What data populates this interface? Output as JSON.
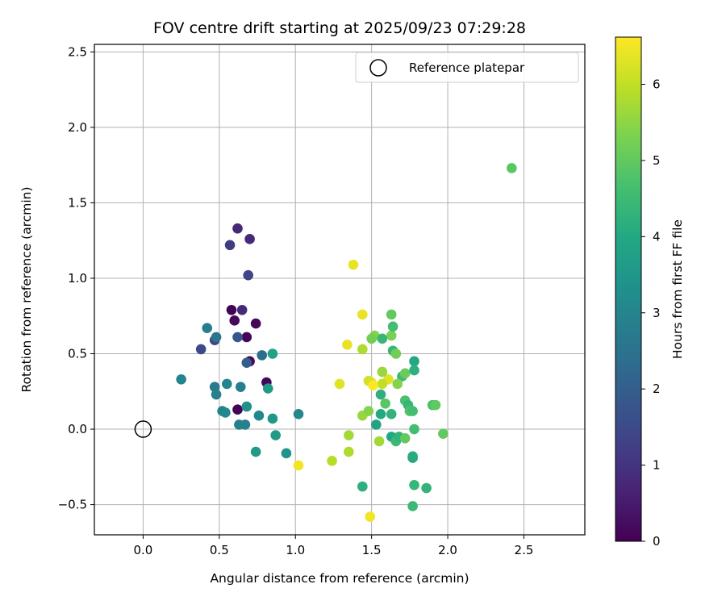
{
  "chart_data": {
    "type": "scatter",
    "title": "FOV centre drift starting at 2025/09/23 07:29:28",
    "xlabel": "Angular distance from reference (arcmin)",
    "ylabel": "Rotation from reference (arcmin)",
    "xlim": [
      -0.32,
      2.9
    ],
    "ylim": [
      -0.7,
      2.55
    ],
    "xticks": [
      0.0,
      0.5,
      1.0,
      1.5,
      2.0,
      2.5
    ],
    "xtick_labels": [
      "0.0",
      "0.5",
      "1.0",
      "1.5",
      "2.0",
      "2.5"
    ],
    "yticks": [
      -0.5,
      0.0,
      0.5,
      1.0,
      1.5,
      2.0,
      2.5
    ],
    "ytick_labels": [
      "−0.5",
      "0.0",
      "0.5",
      "1.0",
      "1.5",
      "2.0",
      "2.5"
    ],
    "grid": true,
    "legend": {
      "position": "top-right",
      "entries": [
        "Reference platepar"
      ]
    },
    "reference_point": {
      "x": 0.0,
      "y": 0.0,
      "label": "Reference platepar"
    },
    "colorbar": {
      "label": "Hours from first FF file",
      "colormap": "viridis",
      "range": [
        0,
        6.62
      ],
      "ticks": [
        0,
        1,
        2,
        3,
        4,
        5,
        6
      ],
      "tick_labels": [
        "0",
        "1",
        "2",
        "3",
        "4",
        "5",
        "6"
      ]
    },
    "points": [
      [
        0.58,
        0.79,
        0.05
      ],
      [
        0.6,
        0.72,
        0.15
      ],
      [
        0.74,
        0.7,
        0.1
      ],
      [
        0.68,
        0.61,
        0.1
      ],
      [
        0.7,
        0.45,
        0.1
      ],
      [
        0.81,
        0.31,
        0.12
      ],
      [
        0.62,
        0.13,
        0.08
      ],
      [
        0.62,
        1.33,
        0.8
      ],
      [
        0.7,
        1.26,
        0.8
      ],
      [
        0.57,
        1.22,
        1.2
      ],
      [
        0.69,
        1.02,
        1.4
      ],
      [
        0.65,
        0.79,
        0.8
      ],
      [
        0.47,
        0.59,
        1.4
      ],
      [
        0.38,
        0.53,
        1.5
      ],
      [
        0.62,
        0.61,
        1.8
      ],
      [
        0.68,
        0.44,
        2.0
      ],
      [
        0.78,
        0.49,
        2.4
      ],
      [
        0.42,
        0.67,
        2.8
      ],
      [
        0.48,
        0.61,
        2.6
      ],
      [
        0.25,
        0.33,
        3.0
      ],
      [
        0.47,
        0.28,
        2.7
      ],
      [
        0.48,
        0.23,
        2.9
      ],
      [
        0.55,
        0.3,
        3.0
      ],
      [
        0.64,
        0.28,
        2.8
      ],
      [
        0.52,
        0.12,
        2.9
      ],
      [
        0.54,
        0.11,
        3.1
      ],
      [
        0.63,
        0.03,
        2.8
      ],
      [
        0.67,
        0.03,
        2.9
      ],
      [
        0.68,
        0.15,
        3.3
      ],
      [
        0.76,
        0.09,
        3.1
      ],
      [
        0.82,
        0.27,
        3.6
      ],
      [
        0.85,
        0.5,
        3.8
      ],
      [
        0.85,
        0.07,
        3.5
      ],
      [
        0.87,
        -0.04,
        3.6
      ],
      [
        0.74,
        -0.15,
        3.6
      ],
      [
        0.94,
        -0.16,
        3.4
      ],
      [
        1.02,
        0.1,
        3.1
      ],
      [
        1.02,
        -0.24,
        6.5
      ],
      [
        1.38,
        1.09,
        6.4
      ],
      [
        1.44,
        0.76,
        6.4
      ],
      [
        1.34,
        0.56,
        6.4
      ],
      [
        1.44,
        0.53,
        5.8
      ],
      [
        1.29,
        0.3,
        6.3
      ],
      [
        1.5,
        0.31,
        6.5
      ],
      [
        1.48,
        0.32,
        6.2
      ],
      [
        1.61,
        0.33,
        6.3
      ],
      [
        1.57,
        0.3,
        6.0
      ],
      [
        1.51,
        0.29,
        6.6
      ],
      [
        1.49,
        -0.58,
        6.5
      ],
      [
        1.24,
        -0.21,
        5.9
      ],
      [
        1.35,
        -0.15,
        5.8
      ],
      [
        1.35,
        -0.04,
        5.7
      ],
      [
        1.44,
        0.09,
        5.6
      ],
      [
        1.48,
        0.12,
        5.4
      ],
      [
        1.55,
        -0.08,
        5.7
      ],
      [
        1.52,
        0.62,
        5.4
      ],
      [
        1.5,
        0.6,
        5.2
      ],
      [
        1.57,
        0.38,
        5.6
      ],
      [
        1.63,
        0.62,
        5.3
      ],
      [
        1.63,
        0.76,
        5.0
      ],
      [
        1.64,
        0.68,
        4.6
      ],
      [
        1.57,
        0.6,
        4.4
      ],
      [
        1.64,
        0.52,
        4.4
      ],
      [
        1.66,
        0.5,
        5.2
      ],
      [
        1.7,
        0.35,
        4.5
      ],
      [
        1.72,
        0.37,
        5.1
      ],
      [
        1.67,
        0.3,
        5.4
      ],
      [
        1.56,
        0.23,
        4.2
      ],
      [
        1.59,
        0.17,
        4.9
      ],
      [
        1.56,
        0.1,
        4.0
      ],
      [
        1.63,
        0.1,
        4.3
      ],
      [
        1.53,
        0.03,
        3.8
      ],
      [
        1.63,
        -0.05,
        4.0
      ],
      [
        1.66,
        -0.08,
        4.5
      ],
      [
        1.68,
        -0.05,
        4.3
      ],
      [
        1.72,
        -0.06,
        5.0
      ],
      [
        1.72,
        0.19,
        4.7
      ],
      [
        1.74,
        0.16,
        4.4
      ],
      [
        1.75,
        0.12,
        4.8
      ],
      [
        1.77,
        0.12,
        4.6
      ],
      [
        1.78,
        0.45,
        4.0
      ],
      [
        1.78,
        0.39,
        4.2
      ],
      [
        1.77,
        -0.19,
        3.9
      ],
      [
        1.77,
        -0.18,
        4.1
      ],
      [
        1.78,
        0.0,
        4.6
      ],
      [
        1.78,
        -0.37,
        4.4
      ],
      [
        1.86,
        -0.39,
        4.3
      ],
      [
        1.77,
        -0.51,
        4.5
      ],
      [
        1.44,
        -0.38,
        4.2
      ],
      [
        1.9,
        0.16,
        4.7
      ],
      [
        1.92,
        0.16,
        5.0
      ],
      [
        1.97,
        -0.03,
        5.0
      ],
      [
        2.42,
        1.73,
        4.9
      ]
    ]
  }
}
